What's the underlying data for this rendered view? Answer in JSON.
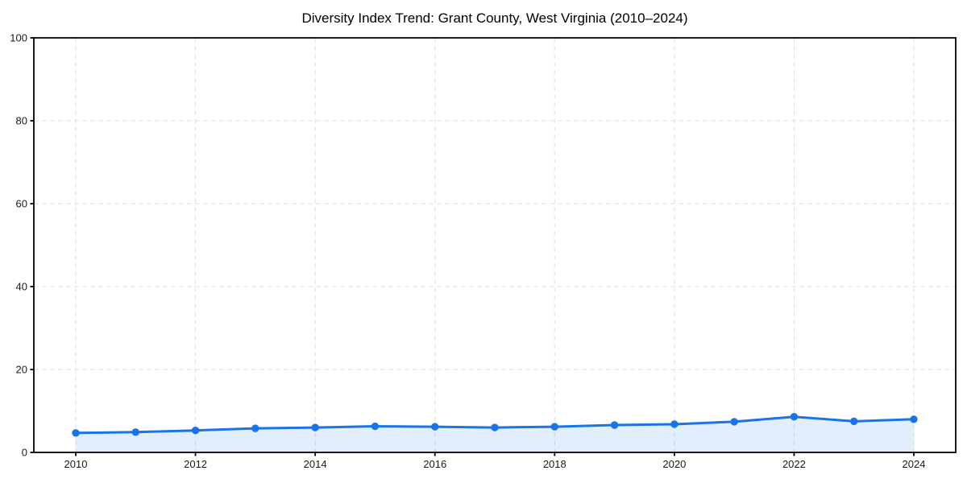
{
  "chart_data": {
    "type": "line",
    "title": "Diversity Index Trend: Grant County, West Virginia (2010–2024)",
    "x": [
      2010,
      2011,
      2012,
      2013,
      2014,
      2015,
      2016,
      2017,
      2018,
      2019,
      2020,
      2021,
      2022,
      2023,
      2024
    ],
    "series": [
      {
        "name": "Diversity Index",
        "values": [
          4.7,
          4.9,
          5.3,
          5.8,
          6.0,
          6.3,
          6.2,
          6.0,
          6.2,
          6.6,
          6.8,
          7.4,
          8.6,
          7.5,
          8.0
        ]
      }
    ],
    "xlabel": "",
    "ylabel": "",
    "xlim": [
      2009.3,
      2024.7
    ],
    "ylim": [
      0,
      100
    ],
    "xticks": [
      2010,
      2012,
      2014,
      2016,
      2018,
      2020,
      2022,
      2024
    ],
    "yticks": [
      0,
      20,
      40,
      60,
      80,
      100
    ],
    "grid": true,
    "grid_style": "dashed",
    "legend": false,
    "marker": "circle",
    "area_fill": true,
    "colors": {
      "line": "#1a73e8",
      "marker": "#1a73e8",
      "fill": "rgba(26,115,232,0.12)",
      "grid": "#e0e0e0",
      "spine": "#000000",
      "tick_label": "#1a1a1a",
      "title": "#000000",
      "background": "#ffffff"
    }
  }
}
